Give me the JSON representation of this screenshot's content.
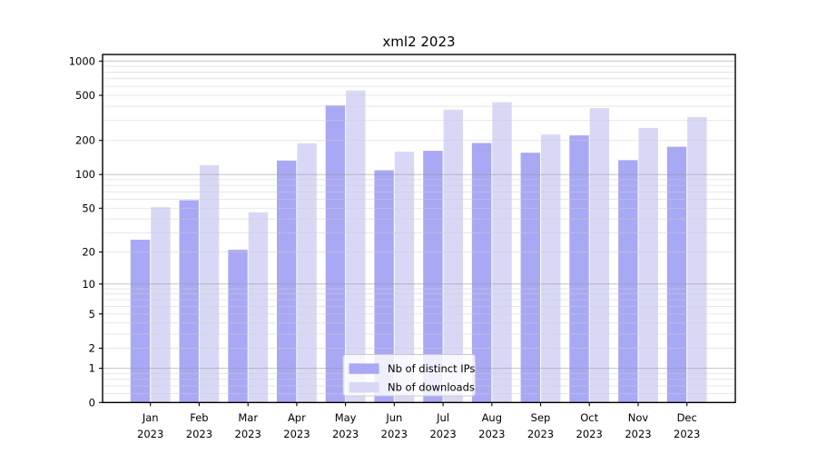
{
  "chart_data": {
    "type": "bar",
    "title": "xml2 2023",
    "x_axis": {
      "categories": [
        "Jan",
        "Feb",
        "Mar",
        "Apr",
        "May",
        "Jun",
        "Jul",
        "Aug",
        "Sep",
        "Oct",
        "Nov",
        "Dec"
      ],
      "year_label": "2023"
    },
    "y_axis": {
      "scale": "log1p",
      "ticks": [
        0,
        1,
        2,
        5,
        10,
        20,
        50,
        100,
        200,
        500,
        1000
      ],
      "range": [
        0,
        1150
      ],
      "grid": true
    },
    "series": [
      {
        "name": "Nb of distinct IPs",
        "color": "#a8a8f5",
        "values": [
          26,
          59,
          21,
          133,
          408,
          109,
          162,
          190,
          156,
          222,
          134,
          176
        ]
      },
      {
        "name": "Nb of downloads",
        "color": "#d8d8f6",
        "values": [
          51,
          121,
          46,
          189,
          551,
          159,
          374,
          435,
          226,
          386,
          258,
          322
        ]
      }
    ],
    "legend": {
      "position": "lower center"
    }
  },
  "colors": {
    "background": "#ffffff",
    "spine": "#000000",
    "grid_minor": "#cdcdcd",
    "grid_major": "#999999",
    "legend_border": "#cccccc",
    "legend_background": "rgba(255,255,255,0.8)"
  }
}
